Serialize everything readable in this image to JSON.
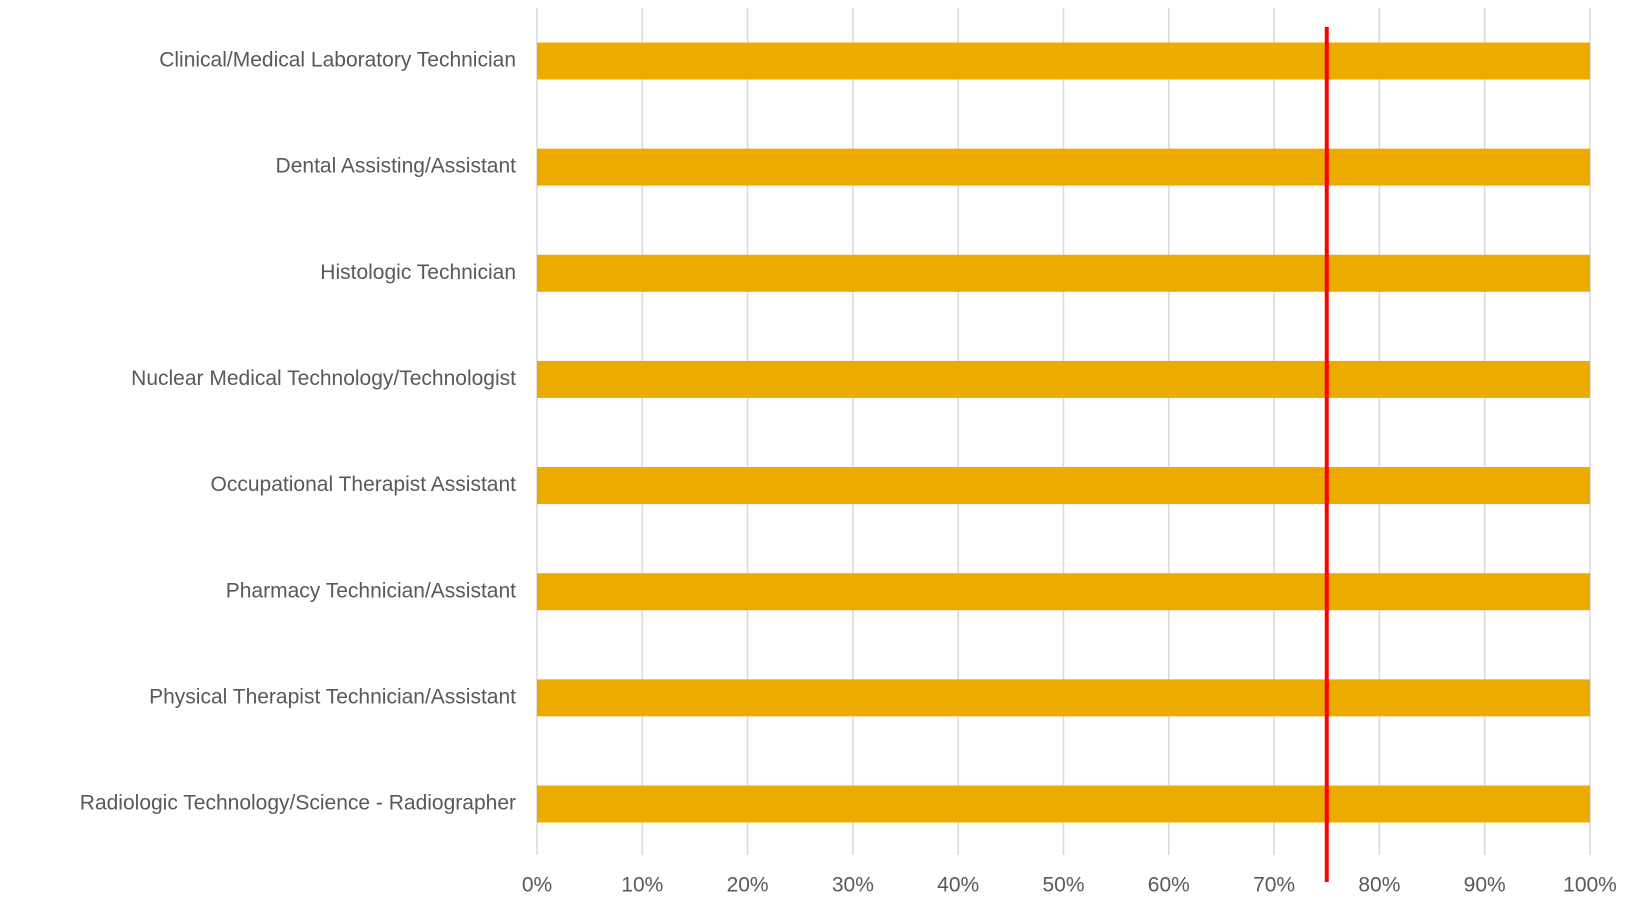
{
  "chart_data": {
    "type": "barh",
    "categories": [
      "Clinical/Medical Laboratory Technician",
      "Dental Assisting/Assistant",
      "Histologic Technician",
      "Nuclear Medical Technology/Technologist",
      "Occupational Therapist Assistant",
      "Pharmacy Technician/Assistant",
      "Physical Therapist Technician/Assistant",
      "Radiologic Technology/Science - Radiographer"
    ],
    "values": [
      100,
      100,
      100,
      100,
      100,
      100,
      100,
      100
    ],
    "color": "#edab00",
    "xlim": [
      0,
      100
    ],
    "xticks": [
      {
        "value": 0,
        "label": "0%"
      },
      {
        "value": 10,
        "label": "10%"
      },
      {
        "value": 20,
        "label": "20%"
      },
      {
        "value": 30,
        "label": "30%"
      },
      {
        "value": 40,
        "label": "40%"
      },
      {
        "value": 50,
        "label": "50%"
      },
      {
        "value": 60,
        "label": "60%"
      },
      {
        "value": 70,
        "label": "70%"
      },
      {
        "value": 80,
        "label": "80%"
      },
      {
        "value": 90,
        "label": "90%"
      },
      {
        "value": 100,
        "label": "100%"
      }
    ],
    "grid": true,
    "reference_line": {
      "value": 75,
      "color": "#ff0000"
    }
  }
}
